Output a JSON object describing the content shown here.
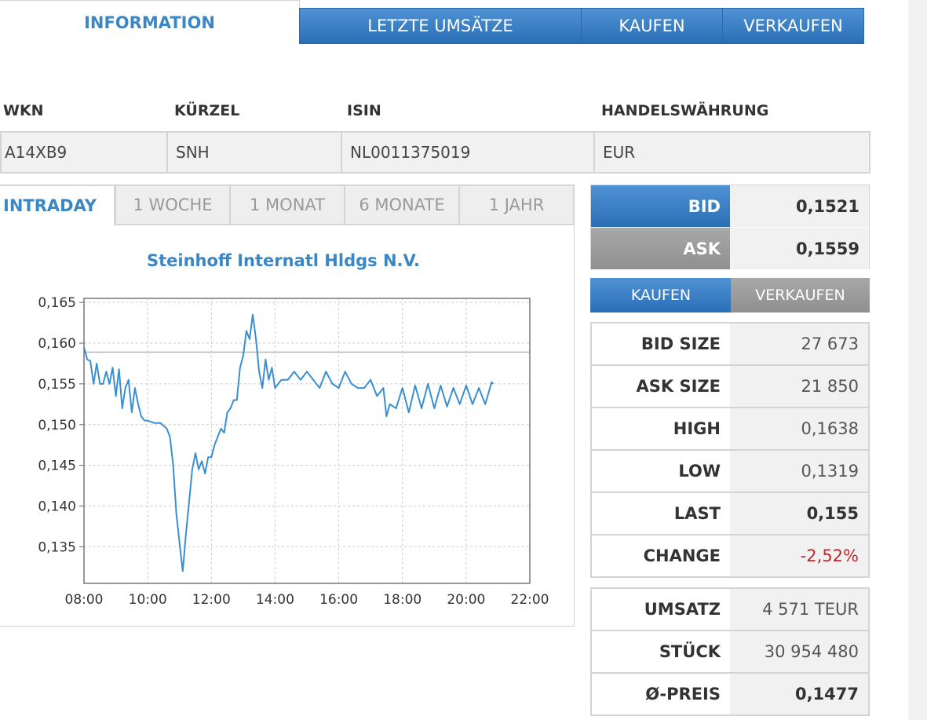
{
  "nav": {
    "tabs": [
      {
        "label": "INFORMATION",
        "active": true
      },
      {
        "label": "LETZTE UMSÄTZE",
        "active": false
      },
      {
        "label": "KAUFEN",
        "active": false
      },
      {
        "label": "VERKAUFEN",
        "active": false
      }
    ]
  },
  "info": {
    "headers": [
      "WKN",
      "KÜRZEL",
      "ISIN",
      "HANDELSWÄHRUNG"
    ],
    "values": [
      "A14XB9",
      "SNH",
      "NL0011375019",
      "EUR"
    ]
  },
  "range_tabs": [
    {
      "label": "INTRADAY",
      "active": true
    },
    {
      "label": "1 WOCHE",
      "active": false
    },
    {
      "label": "1 MONAT",
      "active": false
    },
    {
      "label": "6 MONATE",
      "active": false
    },
    {
      "label": "1 JAHR",
      "active": false
    }
  ],
  "chart_data": {
    "type": "line",
    "title": "Steinhoff Internatl Hldgs N.V.",
    "xlabel": "",
    "ylabel": "",
    "x_ticks": [
      "08:00",
      "10:00",
      "12:00",
      "14:00",
      "16:00",
      "18:00",
      "20:00",
      "22:00"
    ],
    "y_ticks": [
      "0,165",
      "0,160",
      "0,155",
      "0,150",
      "0,145",
      "0,140",
      "0,135"
    ],
    "xlim": [
      8,
      22
    ],
    "ylim": [
      0.1305,
      0.1655
    ],
    "grid": true,
    "reference_line": 0.1589,
    "series": [
      {
        "color": "#3a8fd0",
        "x": [
          8.0,
          8.1,
          8.2,
          8.3,
          8.4,
          8.5,
          8.6,
          8.7,
          8.8,
          8.9,
          9.0,
          9.1,
          9.2,
          9.3,
          9.4,
          9.5,
          9.6,
          9.7,
          9.8,
          9.9,
          10.0,
          10.2,
          10.4,
          10.6,
          10.7,
          10.8,
          10.9,
          11.0,
          11.1,
          11.15,
          11.2,
          11.3,
          11.4,
          11.5,
          11.6,
          11.7,
          11.8,
          11.9,
          12.0,
          12.1,
          12.2,
          12.3,
          12.4,
          12.5,
          12.6,
          12.7,
          12.8,
          12.9,
          13.0,
          13.1,
          13.2,
          13.3,
          13.4,
          13.5,
          13.6,
          13.7,
          13.8,
          13.9,
          14.0,
          14.2,
          14.4,
          14.6,
          14.8,
          15.0,
          15.2,
          15.4,
          15.6,
          15.8,
          16.0,
          16.2,
          16.4,
          16.6,
          16.8,
          17.0,
          17.2,
          17.4,
          17.5,
          17.6,
          17.8,
          18.0,
          18.2,
          18.4,
          18.6,
          18.8,
          19.0,
          19.2,
          19.4,
          19.6,
          19.8,
          20.0,
          20.2,
          20.4,
          20.6,
          20.8,
          20.85
        ],
        "values": [
          0.1595,
          0.158,
          0.1578,
          0.155,
          0.1575,
          0.155,
          0.155,
          0.1565,
          0.155,
          0.157,
          0.1535,
          0.1568,
          0.152,
          0.1545,
          0.1555,
          0.1515,
          0.1545,
          0.1525,
          0.151,
          0.1505,
          0.1505,
          0.1502,
          0.1502,
          0.1495,
          0.1485,
          0.145,
          0.139,
          0.1355,
          0.132,
          0.1342,
          0.1365,
          0.1405,
          0.1445,
          0.1465,
          0.1445,
          0.1455,
          0.144,
          0.146,
          0.146,
          0.1475,
          0.1485,
          0.1495,
          0.149,
          0.1515,
          0.152,
          0.153,
          0.153,
          0.157,
          0.1585,
          0.1615,
          0.1605,
          0.1635,
          0.1605,
          0.1565,
          0.1545,
          0.158,
          0.1555,
          0.157,
          0.1545,
          0.1555,
          0.1555,
          0.1565,
          0.1555,
          0.1565,
          0.1555,
          0.1545,
          0.1565,
          0.155,
          0.1545,
          0.1565,
          0.155,
          0.1545,
          0.1545,
          0.1555,
          0.1535,
          0.1545,
          0.151,
          0.1525,
          0.152,
          0.1545,
          0.1515,
          0.1548,
          0.152,
          0.155,
          0.152,
          0.1548,
          0.1522,
          0.1545,
          0.1525,
          0.1548,
          0.1525,
          0.1545,
          0.1525,
          0.1552,
          0.155
        ]
      }
    ]
  },
  "quote": {
    "bid_label": "BID",
    "bid_value": "0,1521",
    "ask_label": "ASK",
    "ask_value": "0,1559",
    "buy_button": "KAUFEN",
    "sell_button": "VERKAUFEN"
  },
  "stats": [
    {
      "label": "BID SIZE",
      "value": "27 673"
    },
    {
      "label": "ASK SIZE",
      "value": "21 850"
    },
    {
      "label": "HIGH",
      "value": "0,1638"
    },
    {
      "label": "LOW",
      "value": "0,1319"
    },
    {
      "label": "LAST",
      "value": "0,155"
    },
    {
      "label": "CHANGE",
      "value": "-2,52%"
    }
  ],
  "volume": [
    {
      "label": "UMSATZ",
      "value": "4 571 TEUR"
    },
    {
      "label": "STÜCK",
      "value": "30 954 480"
    },
    {
      "label": "Ø-PREIS",
      "value": "0,1477"
    }
  ]
}
